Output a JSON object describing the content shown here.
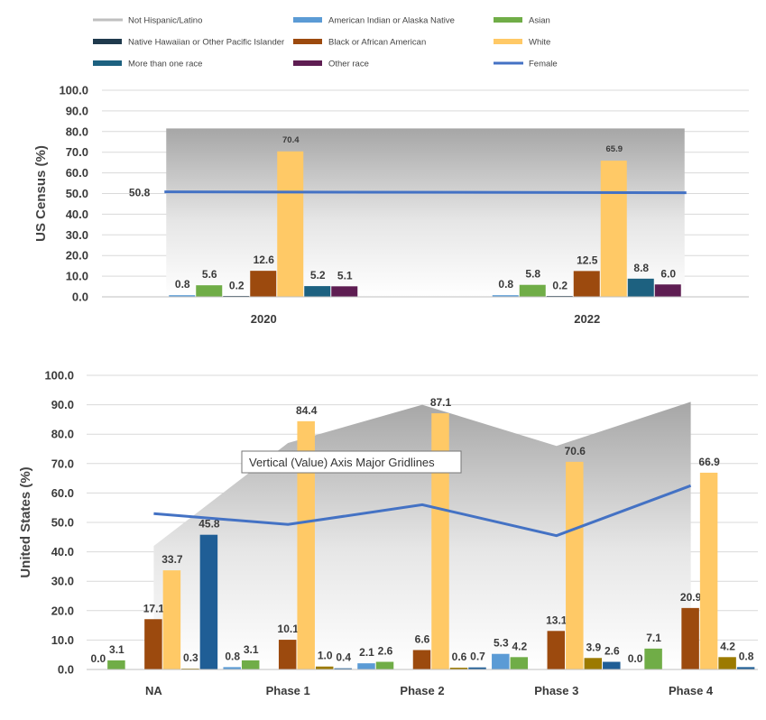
{
  "legend": [
    {
      "label": "Not Hispanic/Latino",
      "color": "#bfbfbf",
      "kind": "line"
    },
    {
      "label": "American Indian or Alaska Native",
      "color": "#5b9bd5",
      "kind": "swatch"
    },
    {
      "label": "Asian",
      "color": "#70ad47",
      "kind": "swatch"
    },
    {
      "label": "Native Hawaiian or Other Pacific Islander",
      "color": "#1f3a4d",
      "kind": "swatch"
    },
    {
      "label": "Black or African American",
      "color": "#9c4a0e",
      "kind": "swatch"
    },
    {
      "label": "White",
      "color": "#ffc966",
      "kind": "swatch"
    },
    {
      "label": "More than one race",
      "color": "#1d6180",
      "kind": "swatch"
    },
    {
      "label": "Other race",
      "color": "#5e1d52",
      "kind": "swatch"
    },
    {
      "label": "Female",
      "color": "#4472c4",
      "kind": "line"
    }
  ],
  "tooltip": "Vertical (Value) Axis Major Gridlines",
  "chart_data": [
    {
      "type": "bar",
      "ylabel": "US Census (%)",
      "ylim": [
        0,
        100
      ],
      "yticks": [
        "0.0",
        "10.0",
        "20.0",
        "30.0",
        "40.0",
        "50.0",
        "60.0",
        "70.0",
        "80.0",
        "90.0",
        "100.0"
      ],
      "grid": true,
      "categories": [
        "2020",
        "2022"
      ],
      "series": [
        {
          "name": "American Indian or Alaska Native",
          "color": "#5b9bd5",
          "values": [
            0.8,
            0.8
          ],
          "labels": [
            "0.8",
            "0.8"
          ]
        },
        {
          "name": "Asian",
          "color": "#70ad47",
          "values": [
            5.6,
            5.8
          ],
          "labels": [
            "5.6",
            "5.8"
          ]
        },
        {
          "name": "Native Hawaiian or Other Pacific Islander",
          "color": "#1f3a4d",
          "values": [
            0.2,
            0.2
          ],
          "labels": [
            "0.2",
            "0.2"
          ]
        },
        {
          "name": "Black or African American",
          "color": "#9c4a0e",
          "values": [
            12.6,
            12.5
          ],
          "labels": [
            "12.6",
            "12.5"
          ]
        },
        {
          "name": "White",
          "color": "#ffc966",
          "values": [
            70.4,
            65.9
          ],
          "labels": [
            "70.4",
            "65.9"
          ]
        },
        {
          "name": "More than one race",
          "color": "#1d6180",
          "values": [
            5.2,
            8.8
          ],
          "labels": [
            "5.2",
            "8.8"
          ]
        },
        {
          "name": "Other race",
          "color": "#5e1d52",
          "values": [
            5.1,
            6.0
          ],
          "labels": [
            "5.1",
            "6.0"
          ]
        }
      ],
      "area": {
        "name": "Not Hispanic/Latino",
        "values": [
          81.5,
          81.5
        ]
      },
      "line": {
        "name": "Female",
        "color": "#4472c4",
        "values": [
          50.8,
          50.4
        ],
        "labels": [
          "50.8",
          ""
        ]
      }
    },
    {
      "type": "bar",
      "ylabel": "United States (%)",
      "ylim": [
        0,
        100
      ],
      "yticks": [
        "0.0",
        "10.0",
        "20.0",
        "30.0",
        "40.0",
        "50.0",
        "60.0",
        "70.0",
        "80.0",
        "90.0",
        "100.0"
      ],
      "grid": true,
      "categories": [
        "NA",
        "Phase 1",
        "Phase 2",
        "Phase 3",
        "Phase 4"
      ],
      "series": [
        {
          "name": "American Indian or Alaska Native",
          "color": "#5b9bd5",
          "values": [
            0.0,
            0.8,
            2.1,
            5.3,
            0.0
          ],
          "labels": [
            "0.0",
            "0.8",
            "2.1",
            "5.3",
            "0.0"
          ]
        },
        {
          "name": "Asian",
          "color": "#70ad47",
          "values": [
            3.1,
            3.1,
            2.6,
            4.2,
            7.1
          ],
          "labels": [
            "3.1",
            "3.1",
            "2.6",
            "4.2",
            "7.1"
          ]
        },
        {
          "name": "Native Hawaiian or Other Pacific Islander",
          "color": "#1f3a4d",
          "values": [
            0.0,
            0.0,
            0.0,
            0.0,
            0.0
          ],
          "labels": [
            "",
            "",
            "",
            "",
            ""
          ]
        },
        {
          "name": "Black or African American",
          "color": "#9c4a0e",
          "values": [
            17.1,
            10.1,
            6.6,
            13.1,
            20.9
          ],
          "labels": [
            "17.1",
            "10.1",
            "6.6",
            "13.1",
            "20.9"
          ]
        },
        {
          "name": "White",
          "color": "#ffc966",
          "values": [
            33.7,
            84.4,
            87.1,
            70.6,
            66.9
          ],
          "labels": [
            "33.7",
            "84.4",
            "87.1",
            "70.6",
            "66.9"
          ]
        },
        {
          "name": "Other race",
          "color": "#9c7a00",
          "values": [
            0.3,
            1.0,
            0.6,
            3.9,
            4.2
          ],
          "labels": [
            "0.3",
            "1.0",
            "0.6",
            "3.9",
            "4.2"
          ]
        },
        {
          "name": "More than one race",
          "color": "#1f5e96",
          "values": [
            45.8,
            0.4,
            0.7,
            2.6,
            0.8
          ],
          "labels": [
            "45.8",
            "0.4",
            "0.7",
            "2.6",
            "0.8"
          ]
        }
      ],
      "area": {
        "name": "Not Hispanic/Latino",
        "values": [
          42,
          77,
          90,
          76,
          91
        ]
      },
      "line": {
        "name": "Female",
        "color": "#4472c4",
        "values": [
          53,
          49.3,
          56,
          45.5,
          62.5
        ]
      }
    }
  ]
}
